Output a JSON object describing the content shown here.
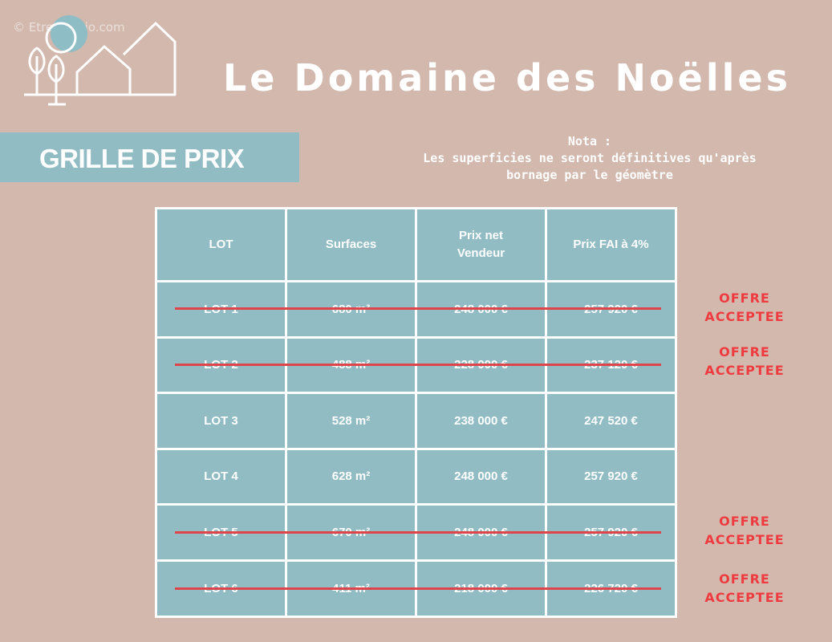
{
  "watermark": "© EtreProprio.com",
  "title": "Le Domaine des Noëlles",
  "banner": "GRILLE DE PRIX",
  "nota": {
    "heading": "Nota :",
    "line1": "Les superficies ne seront définitives qu'après",
    "line2": "bornage par le géomètre"
  },
  "table": {
    "headers": {
      "lot": "LOT",
      "surface": "Surfaces",
      "net_line1": "Prix net",
      "net_line2": "Vendeur",
      "fai": "Prix FAI à 4%"
    },
    "rows": [
      {
        "lot": "LOT 1",
        "surface": "680 m²",
        "net": "248 000 €",
        "fai": "257 920 €",
        "sold": true,
        "status_line1": "OFFRE",
        "status_line2": "ACCEPTEE"
      },
      {
        "lot": "LOT 2",
        "surface": "488 m²",
        "net": "228 000 €",
        "fai": "237 120 €",
        "sold": true,
        "status_line1": "OFFRE",
        "status_line2": "ACCEPTEE"
      },
      {
        "lot": "LOT 3",
        "surface": "528 m²",
        "net": "238 000 €",
        "fai": "247 520 €",
        "sold": false,
        "status_line1": "",
        "status_line2": ""
      },
      {
        "lot": "LOT 4",
        "surface": "628 m²",
        "net": "248 000 €",
        "fai": "257 920 €",
        "sold": false,
        "status_line1": "",
        "status_line2": ""
      },
      {
        "lot": "LOT 5",
        "surface": "670 m²",
        "net": "248 000 €",
        "fai": "257 920 €",
        "sold": true,
        "status_line1": "OFFRE",
        "status_line2": "ACCEPTEE"
      },
      {
        "lot": "LOT 6",
        "surface": "411 m²",
        "net": "218 000 €",
        "fai": "226 720 €",
        "sold": true,
        "status_line1": "OFFRE",
        "status_line2": "ACCEPTEE"
      }
    ]
  },
  "colors": {
    "background": "#d2b8ad",
    "cell": "#91bcc4",
    "strike": "#e0444b",
    "offer": "#ef3b3f"
  }
}
